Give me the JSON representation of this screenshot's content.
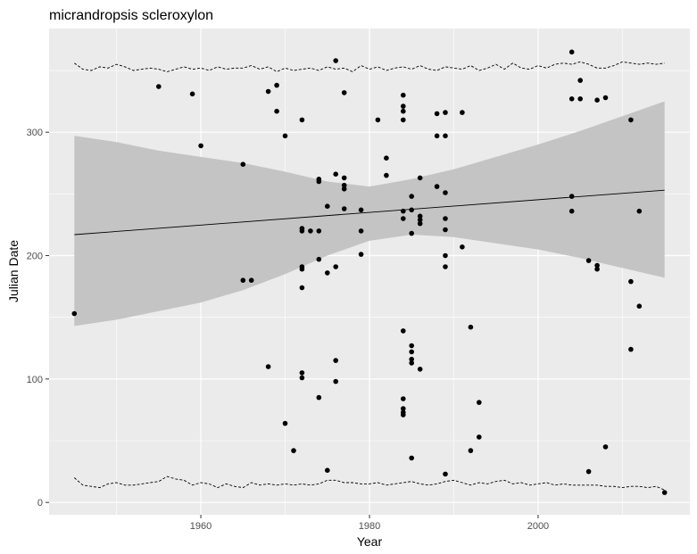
{
  "chart_data": {
    "type": "scatter",
    "title": "micrandropsis scleroxylon",
    "xlabel": "Year",
    "ylabel": "Julian Date",
    "xlim": [
      1942,
      2018
    ],
    "ylim": [
      -10,
      384
    ],
    "x_ticks": [
      1960,
      1980,
      2000
    ],
    "y_ticks": [
      0,
      100,
      200,
      300
    ],
    "grid": true,
    "legend": "none",
    "colors": {
      "panel": "#ebebeb",
      "grid_major": "#ffffff",
      "points": "#000000",
      "ribbon": "#c4c4c4",
      "line": "#000000"
    },
    "points": [
      [
        1945,
        153
      ],
      [
        1955,
        337
      ],
      [
        1959,
        331
      ],
      [
        1960,
        289
      ],
      [
        1965,
        274
      ],
      [
        1965,
        180
      ],
      [
        1966,
        180
      ],
      [
        1968,
        333
      ],
      [
        1968,
        110
      ],
      [
        1969,
        338
      ],
      [
        1969,
        317
      ],
      [
        1970,
        297
      ],
      [
        1970,
        64
      ],
      [
        1971,
        42
      ],
      [
        1972,
        310
      ],
      [
        1972,
        222
      ],
      [
        1972,
        220
      ],
      [
        1972,
        191
      ],
      [
        1972,
        189
      ],
      [
        1972,
        174
      ],
      [
        1972,
        105
      ],
      [
        1972,
        101
      ],
      [
        1973,
        220
      ],
      [
        1974,
        262
      ],
      [
        1974,
        260
      ],
      [
        1974,
        220
      ],
      [
        1974,
        197
      ],
      [
        1974,
        85
      ],
      [
        1975,
        240
      ],
      [
        1975,
        186
      ],
      [
        1975,
        26
      ],
      [
        1976,
        358
      ],
      [
        1976,
        266
      ],
      [
        1976,
        191
      ],
      [
        1976,
        115
      ],
      [
        1976,
        98
      ],
      [
        1977,
        332
      ],
      [
        1977,
        263
      ],
      [
        1977,
        257
      ],
      [
        1977,
        254
      ],
      [
        1977,
        238
      ],
      [
        1979,
        237
      ],
      [
        1979,
        220
      ],
      [
        1979,
        201
      ],
      [
        1981,
        310
      ],
      [
        1982,
        279
      ],
      [
        1982,
        265
      ],
      [
        1984,
        330
      ],
      [
        1984,
        321
      ],
      [
        1984,
        317
      ],
      [
        1984,
        310
      ],
      [
        1984,
        236
      ],
      [
        1984,
        230
      ],
      [
        1984,
        139
      ],
      [
        1984,
        84
      ],
      [
        1984,
        76
      ],
      [
        1984,
        73
      ],
      [
        1984,
        71
      ],
      [
        1985,
        248
      ],
      [
        1985,
        237
      ],
      [
        1985,
        218
      ],
      [
        1985,
        127
      ],
      [
        1985,
        122
      ],
      [
        1985,
        116
      ],
      [
        1985,
        113
      ],
      [
        1985,
        36
      ],
      [
        1986,
        263
      ],
      [
        1986,
        232
      ],
      [
        1986,
        229
      ],
      [
        1986,
        226
      ],
      [
        1986,
        108
      ],
      [
        1988,
        315
      ],
      [
        1988,
        297
      ],
      [
        1988,
        256
      ],
      [
        1989,
        316
      ],
      [
        1989,
        297
      ],
      [
        1989,
        251
      ],
      [
        1989,
        230
      ],
      [
        1989,
        221
      ],
      [
        1989,
        200
      ],
      [
        1989,
        191
      ],
      [
        1989,
        23
      ],
      [
        1991,
        316
      ],
      [
        1991,
        207
      ],
      [
        1992,
        142
      ],
      [
        1992,
        42
      ],
      [
        1993,
        81
      ],
      [
        1993,
        53
      ],
      [
        2004,
        365
      ],
      [
        2004,
        327
      ],
      [
        2004,
        248
      ],
      [
        2004,
        236
      ],
      [
        2005,
        342
      ],
      [
        2005,
        327
      ],
      [
        2006,
        196
      ],
      [
        2006,
        25
      ],
      [
        2007,
        326
      ],
      [
        2007,
        192
      ],
      [
        2007,
        189
      ],
      [
        2008,
        328
      ],
      [
        2008,
        45
      ],
      [
        2011,
        310
      ],
      [
        2011,
        179
      ],
      [
        2011,
        124
      ],
      [
        2012,
        236
      ],
      [
        2012,
        159
      ],
      [
        2015,
        8
      ]
    ],
    "trend": {
      "x": [
        1945,
        2015
      ],
      "y": [
        217,
        253
      ]
    },
    "confidence_band": {
      "x": [
        1945,
        1950,
        1955,
        1960,
        1965,
        1970,
        1975,
        1980,
        1985,
        1990,
        1995,
        2000,
        2005,
        2010,
        2015
      ],
      "upper": [
        297,
        292,
        285,
        280,
        275,
        268,
        260,
        256,
        262,
        270,
        280,
        290,
        301,
        313,
        325
      ],
      "lower": [
        143,
        148,
        155,
        162,
        172,
        185,
        200,
        212,
        217,
        215,
        210,
        205,
        198,
        190,
        182
      ]
    },
    "quantile_bands": {
      "x": [
        1945,
        1946,
        1947,
        1948,
        1949,
        1950,
        1951,
        1952,
        1953,
        1954,
        1955,
        1956,
        1957,
        1958,
        1959,
        1960,
        1961,
        1962,
        1963,
        1964,
        1965,
        1966,
        1967,
        1968,
        1969,
        1970,
        1971,
        1972,
        1973,
        1974,
        1975,
        1976,
        1977,
        1978,
        1979,
        1980,
        1981,
        1982,
        1983,
        1984,
        1985,
        1986,
        1987,
        1988,
        1989,
        1990,
        1991,
        1992,
        1993,
        1994,
        1995,
        1996,
        1997,
        1998,
        1999,
        2000,
        2001,
        2002,
        2003,
        2004,
        2005,
        2006,
        2007,
        2008,
        2009,
        2010,
        2011,
        2012,
        2013,
        2014,
        2015
      ],
      "upper": [
        356,
        351,
        350,
        353,
        352,
        355,
        353,
        350,
        351,
        352,
        351,
        349,
        351,
        353,
        351,
        352,
        350,
        353,
        351,
        352,
        352,
        354,
        351,
        353,
        349,
        352,
        350,
        351,
        352,
        350,
        353,
        351,
        352,
        349,
        354,
        351,
        353,
        350,
        352,
        353,
        351,
        354,
        351,
        350,
        353,
        352,
        351,
        354,
        350,
        352,
        355,
        351,
        356,
        352,
        351,
        354,
        352,
        355,
        356,
        355,
        357,
        355,
        352,
        352,
        354,
        357,
        356,
        355,
        356,
        355,
        356
      ],
      "lower": [
        20,
        14,
        13,
        12,
        15,
        16,
        14,
        14,
        15,
        16,
        17,
        21,
        19,
        18,
        14,
        16,
        15,
        12,
        15,
        13,
        12,
        16,
        14,
        15,
        14,
        15,
        14,
        15,
        14,
        15,
        18,
        18,
        16,
        16,
        15,
        15,
        16,
        14,
        15,
        16,
        17,
        15,
        14,
        15,
        17,
        18,
        16,
        14,
        16,
        15,
        17,
        18,
        15,
        16,
        14,
        15,
        16,
        14,
        15,
        14,
        14,
        14,
        14,
        13,
        13,
        12,
        13,
        13,
        12,
        13,
        10
      ]
    }
  }
}
